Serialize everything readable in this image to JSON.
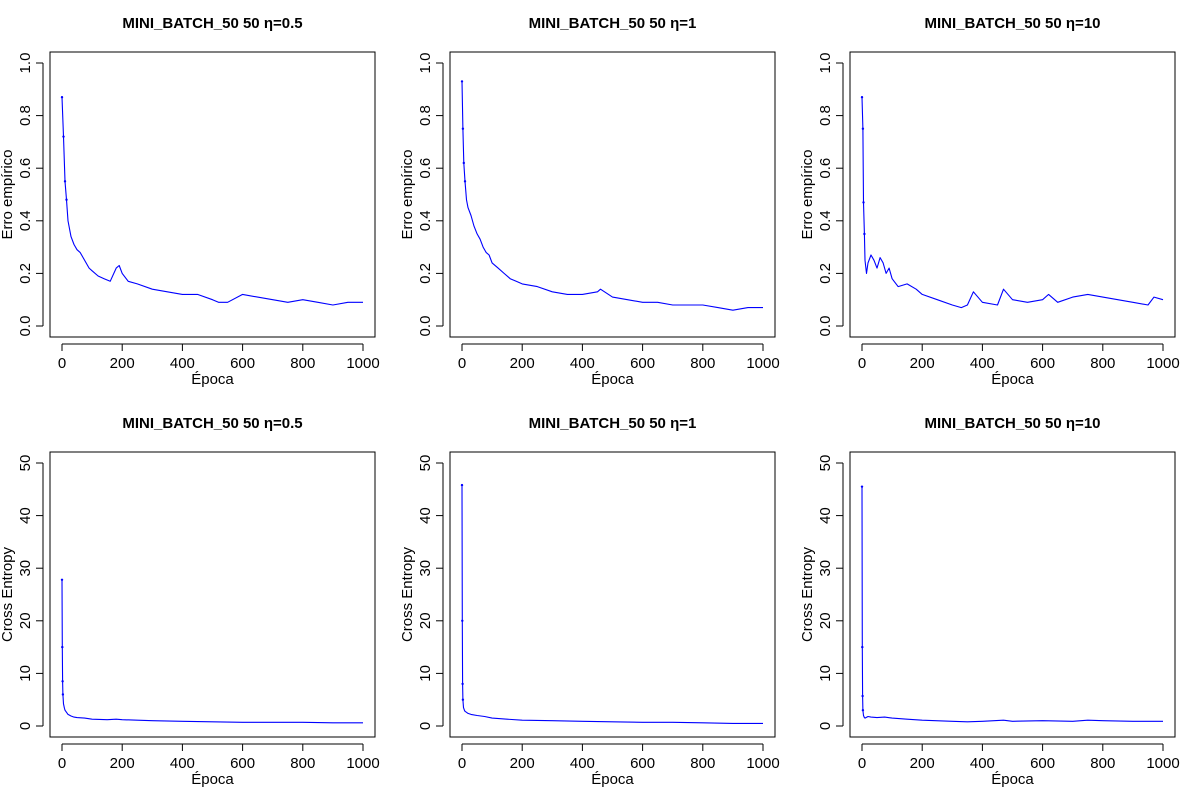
{
  "colors": {
    "series": "#0000ff",
    "axis": "#000000"
  },
  "chart_data": [
    {
      "type": "line",
      "title": "MINI_BATCH_50 50 η=0.5",
      "xlabel": "Época",
      "ylabel": "Erro empírico",
      "xlim": [
        0,
        1000
      ],
      "ylim": [
        0,
        1
      ],
      "xticks": [
        0,
        200,
        400,
        600,
        800,
        1000
      ],
      "yticks": [
        0.0,
        0.2,
        0.4,
        0.6,
        0.8,
        1.0
      ],
      "ytick_labels": [
        "0.0",
        "0.2",
        "0.4",
        "0.6",
        "0.8",
        "1.0"
      ],
      "series": [
        {
          "x": [
            0,
            5,
            10,
            15,
            20,
            30,
            40,
            50,
            60,
            70,
            80,
            90,
            100,
            120,
            140,
            160,
            180,
            190,
            200,
            220,
            250,
            300,
            350,
            400,
            450,
            500,
            520,
            550,
            600,
            650,
            700,
            750,
            800,
            850,
            900,
            950,
            1000
          ],
          "values": [
            0.87,
            0.72,
            0.55,
            0.48,
            0.4,
            0.34,
            0.31,
            0.29,
            0.28,
            0.26,
            0.24,
            0.22,
            0.21,
            0.19,
            0.18,
            0.17,
            0.22,
            0.23,
            0.2,
            0.17,
            0.16,
            0.14,
            0.13,
            0.12,
            0.12,
            0.1,
            0.09,
            0.09,
            0.12,
            0.11,
            0.1,
            0.09,
            0.1,
            0.09,
            0.08,
            0.09,
            0.09
          ]
        }
      ]
    },
    {
      "type": "line",
      "title": "MINI_BATCH_50 50 η=1",
      "xlabel": "Época",
      "ylabel": "Erro empírico",
      "xlim": [
        0,
        1000
      ],
      "ylim": [
        0,
        1
      ],
      "xticks": [
        0,
        200,
        400,
        600,
        800,
        1000
      ],
      "yticks": [
        0.0,
        0.2,
        0.4,
        0.6,
        0.8,
        1.0
      ],
      "ytick_labels": [
        "0.0",
        "0.2",
        "0.4",
        "0.6",
        "0.8",
        "1.0"
      ],
      "series": [
        {
          "x": [
            0,
            3,
            6,
            10,
            15,
            20,
            30,
            40,
            50,
            60,
            70,
            80,
            90,
            100,
            120,
            140,
            160,
            180,
            200,
            250,
            300,
            350,
            400,
            450,
            460,
            500,
            550,
            600,
            650,
            700,
            750,
            800,
            850,
            900,
            950,
            1000
          ],
          "values": [
            0.93,
            0.75,
            0.62,
            0.55,
            0.48,
            0.45,
            0.42,
            0.38,
            0.35,
            0.33,
            0.3,
            0.28,
            0.27,
            0.24,
            0.22,
            0.2,
            0.18,
            0.17,
            0.16,
            0.15,
            0.13,
            0.12,
            0.12,
            0.13,
            0.14,
            0.11,
            0.1,
            0.09,
            0.09,
            0.08,
            0.08,
            0.08,
            0.07,
            0.06,
            0.07,
            0.07
          ]
        }
      ]
    },
    {
      "type": "line",
      "title": "MINI_BATCH_50 50 η=10",
      "xlabel": "Época",
      "ylabel": "Erro empírico",
      "xlim": [
        0,
        1000
      ],
      "ylim": [
        0,
        1
      ],
      "xticks": [
        0,
        200,
        400,
        600,
        800,
        1000
      ],
      "yticks": [
        0.0,
        0.2,
        0.4,
        0.6,
        0.8,
        1.0
      ],
      "ytick_labels": [
        "0.0",
        "0.2",
        "0.4",
        "0.6",
        "0.8",
        "1.0"
      ],
      "series": [
        {
          "x": [
            0,
            3,
            5,
            8,
            10,
            15,
            20,
            30,
            40,
            50,
            60,
            70,
            80,
            90,
            100,
            120,
            150,
            180,
            200,
            250,
            300,
            330,
            350,
            370,
            400,
            450,
            470,
            500,
            550,
            600,
            620,
            650,
            700,
            750,
            800,
            850,
            900,
            950,
            970,
            1000
          ],
          "values": [
            0.87,
            0.75,
            0.47,
            0.35,
            0.25,
            0.2,
            0.24,
            0.27,
            0.25,
            0.22,
            0.26,
            0.24,
            0.2,
            0.22,
            0.18,
            0.15,
            0.16,
            0.14,
            0.12,
            0.1,
            0.08,
            0.07,
            0.08,
            0.13,
            0.09,
            0.08,
            0.14,
            0.1,
            0.09,
            0.1,
            0.12,
            0.09,
            0.11,
            0.12,
            0.11,
            0.1,
            0.09,
            0.08,
            0.11,
            0.1
          ]
        }
      ]
    },
    {
      "type": "line",
      "title": "MINI_BATCH_50 50 η=0.5",
      "xlabel": "Época",
      "ylabel": "Cross Entropy",
      "xlim": [
        0,
        1000
      ],
      "ylim": [
        0,
        50
      ],
      "xticks": [
        0,
        200,
        400,
        600,
        800,
        1000
      ],
      "yticks": [
        0,
        10,
        20,
        30,
        40,
        50
      ],
      "ytick_labels": [
        "0",
        "10",
        "20",
        "30",
        "40",
        "50"
      ],
      "series": [
        {
          "x": [
            0,
            1,
            2,
            3,
            5,
            8,
            10,
            15,
            20,
            30,
            40,
            50,
            75,
            100,
            150,
            180,
            200,
            250,
            300,
            400,
            500,
            600,
            700,
            800,
            900,
            1000
          ],
          "values": [
            27.8,
            15.0,
            8.5,
            6.0,
            4.2,
            3.4,
            3.0,
            2.6,
            2.2,
            1.9,
            1.7,
            1.6,
            1.5,
            1.3,
            1.2,
            1.3,
            1.2,
            1.1,
            1.0,
            0.9,
            0.8,
            0.7,
            0.7,
            0.7,
            0.6,
            0.6
          ]
        }
      ]
    },
    {
      "type": "line",
      "title": "MINI_BATCH_50 50 η=1",
      "xlabel": "Época",
      "ylabel": "Cross Entropy",
      "xlim": [
        0,
        1000
      ],
      "ylim": [
        0,
        50
      ],
      "xticks": [
        0,
        200,
        400,
        600,
        800,
        1000
      ],
      "yticks": [
        0,
        10,
        20,
        30,
        40,
        50
      ],
      "ytick_labels": [
        "0",
        "10",
        "20",
        "30",
        "40",
        "50"
      ],
      "series": [
        {
          "x": [
            0,
            1,
            2,
            3,
            5,
            8,
            10,
            15,
            20,
            30,
            50,
            75,
            100,
            150,
            200,
            300,
            400,
            500,
            600,
            700,
            800,
            900,
            1000
          ],
          "values": [
            45.8,
            20.0,
            8.0,
            5.0,
            3.5,
            3.0,
            2.8,
            2.6,
            2.4,
            2.2,
            2.0,
            1.8,
            1.5,
            1.3,
            1.1,
            1.0,
            0.9,
            0.8,
            0.7,
            0.7,
            0.6,
            0.5,
            0.5
          ]
        }
      ]
    },
    {
      "type": "line",
      "title": "MINI_BATCH_50 50 η=10",
      "xlabel": "Época",
      "ylabel": "Cross Entropy",
      "xlim": [
        0,
        1000
      ],
      "ylim": [
        0,
        50
      ],
      "xticks": [
        0,
        200,
        400,
        600,
        800,
        1000
      ],
      "yticks": [
        0,
        10,
        20,
        30,
        40,
        50
      ],
      "ytick_labels": [
        "0",
        "10",
        "20",
        "30",
        "40",
        "50"
      ],
      "series": [
        {
          "x": [
            0,
            1,
            2,
            3,
            5,
            8,
            10,
            20,
            30,
            50,
            75,
            100,
            150,
            200,
            300,
            350,
            400,
            470,
            500,
            600,
            700,
            750,
            800,
            900,
            1000
          ],
          "values": [
            45.5,
            15.0,
            5.7,
            3.0,
            2.0,
            1.6,
            1.5,
            1.8,
            1.7,
            1.6,
            1.7,
            1.5,
            1.3,
            1.1,
            0.9,
            0.8,
            0.9,
            1.1,
            0.9,
            1.0,
            0.9,
            1.1,
            1.0,
            0.9,
            0.9
          ]
        }
      ]
    }
  ]
}
